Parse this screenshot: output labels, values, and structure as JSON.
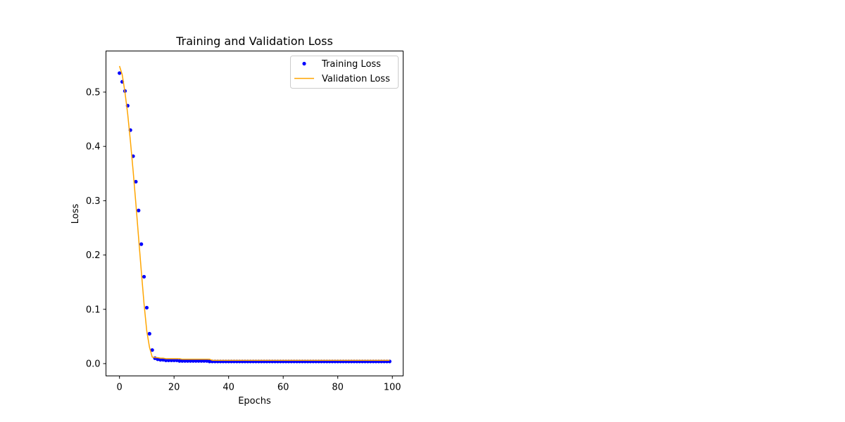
{
  "chart_data": {
    "type": "scatter",
    "title": "Training and Validation Loss",
    "xlabel": "Epochs",
    "ylabel": "Loss",
    "xlim": [
      -4.95,
      103.95
    ],
    "ylim": [
      -0.0227,
      0.5757
    ],
    "xticks": [
      0,
      20,
      40,
      60,
      80,
      100
    ],
    "xtick_labels": [
      "0",
      "20",
      "40",
      "60",
      "80",
      "100"
    ],
    "yticks": [
      0.0,
      0.1,
      0.2,
      0.3,
      0.4,
      0.5
    ],
    "ytick_labels": [
      "0.0",
      "0.1",
      "0.2",
      "0.3",
      "0.4",
      "0.5"
    ],
    "grid": false,
    "legend_position": "upper right",
    "series": [
      {
        "name": "Training Loss",
        "kind": "scatter",
        "color": "#0000ff",
        "x": [
          0,
          1,
          2,
          3,
          4,
          5,
          6,
          7,
          8,
          9,
          10,
          11,
          12,
          13,
          14,
          15,
          16,
          17,
          18,
          19,
          20,
          21,
          22,
          23,
          24,
          25,
          26,
          27,
          28,
          29,
          30,
          31,
          32,
          33,
          34,
          35,
          36,
          37,
          38,
          39,
          40,
          41,
          42,
          43,
          44,
          45,
          46,
          47,
          48,
          49,
          50,
          51,
          52,
          53,
          54,
          55,
          56,
          57,
          58,
          59,
          60,
          61,
          62,
          63,
          64,
          65,
          66,
          67,
          68,
          69,
          70,
          71,
          72,
          73,
          74,
          75,
          76,
          77,
          78,
          79,
          80,
          81,
          82,
          83,
          84,
          85,
          86,
          87,
          88,
          89,
          90,
          91,
          92,
          93,
          94,
          95,
          96,
          97,
          98,
          99
        ],
        "y": [
          0.535,
          0.519,
          0.502,
          0.475,
          0.43,
          0.382,
          0.335,
          0.282,
          0.22,
          0.16,
          0.103,
          0.055,
          0.025,
          0.01,
          0.008,
          0.007,
          0.007,
          0.006,
          0.006,
          0.006,
          0.006,
          0.006,
          0.005,
          0.005,
          0.005,
          0.005,
          0.005,
          0.005,
          0.005,
          0.005,
          0.005,
          0.005,
          0.005,
          0.004,
          0.004,
          0.004,
          0.004,
          0.004,
          0.004,
          0.004,
          0.004,
          0.004,
          0.004,
          0.004,
          0.004,
          0.004,
          0.004,
          0.004,
          0.004,
          0.004,
          0.004,
          0.004,
          0.004,
          0.004,
          0.004,
          0.004,
          0.004,
          0.004,
          0.004,
          0.004,
          0.004,
          0.004,
          0.004,
          0.004,
          0.004,
          0.004,
          0.004,
          0.004,
          0.004,
          0.004,
          0.004,
          0.004,
          0.004,
          0.004,
          0.004,
          0.004,
          0.004,
          0.004,
          0.004,
          0.004,
          0.004,
          0.004,
          0.004,
          0.004,
          0.004,
          0.004,
          0.004,
          0.004,
          0.004,
          0.004,
          0.004,
          0.004,
          0.004,
          0.004,
          0.004,
          0.004,
          0.004,
          0.004,
          0.004,
          0.004
        ]
      },
      {
        "name": "Validation Loss",
        "kind": "line",
        "color": "#ffa500",
        "x": [
          0,
          1,
          2,
          3,
          4,
          5,
          6,
          7,
          8,
          9,
          10,
          11,
          12,
          13,
          14,
          15,
          16,
          17,
          18,
          19,
          20,
          21,
          22,
          23,
          24,
          25,
          26,
          27,
          28,
          29,
          30,
          31,
          32,
          33,
          34,
          35,
          36,
          37,
          38,
          39,
          40,
          41,
          42,
          43,
          44,
          45,
          46,
          47,
          48,
          49,
          50,
          51,
          52,
          53,
          54,
          55,
          56,
          57,
          58,
          59,
          60,
          61,
          62,
          63,
          64,
          65,
          66,
          67,
          68,
          69,
          70,
          71,
          72,
          73,
          74,
          75,
          76,
          77,
          78,
          79,
          80,
          81,
          82,
          83,
          84,
          85,
          86,
          87,
          88,
          89,
          90,
          91,
          92,
          93,
          94,
          95,
          96,
          97,
          98,
          99
        ],
        "y": [
          0.548,
          0.532,
          0.5,
          0.46,
          0.41,
          0.355,
          0.295,
          0.232,
          0.17,
          0.11,
          0.06,
          0.03,
          0.012,
          0.011,
          0.011,
          0.01,
          0.01,
          0.009,
          0.009,
          0.009,
          0.009,
          0.009,
          0.009,
          0.008,
          0.008,
          0.008,
          0.008,
          0.008,
          0.008,
          0.008,
          0.008,
          0.008,
          0.008,
          0.008,
          0.006,
          0.006,
          0.006,
          0.006,
          0.006,
          0.006,
          0.006,
          0.006,
          0.006,
          0.006,
          0.006,
          0.006,
          0.006,
          0.006,
          0.006,
          0.006,
          0.006,
          0.006,
          0.006,
          0.006,
          0.006,
          0.006,
          0.006,
          0.006,
          0.006,
          0.006,
          0.006,
          0.006,
          0.006,
          0.006,
          0.006,
          0.006,
          0.006,
          0.006,
          0.006,
          0.006,
          0.006,
          0.006,
          0.006,
          0.006,
          0.006,
          0.006,
          0.006,
          0.006,
          0.006,
          0.006,
          0.006,
          0.006,
          0.006,
          0.006,
          0.006,
          0.006,
          0.006,
          0.006,
          0.006,
          0.006,
          0.006,
          0.006,
          0.006,
          0.006,
          0.006,
          0.006,
          0.006,
          0.006,
          0.006,
          0.006
        ]
      }
    ]
  }
}
